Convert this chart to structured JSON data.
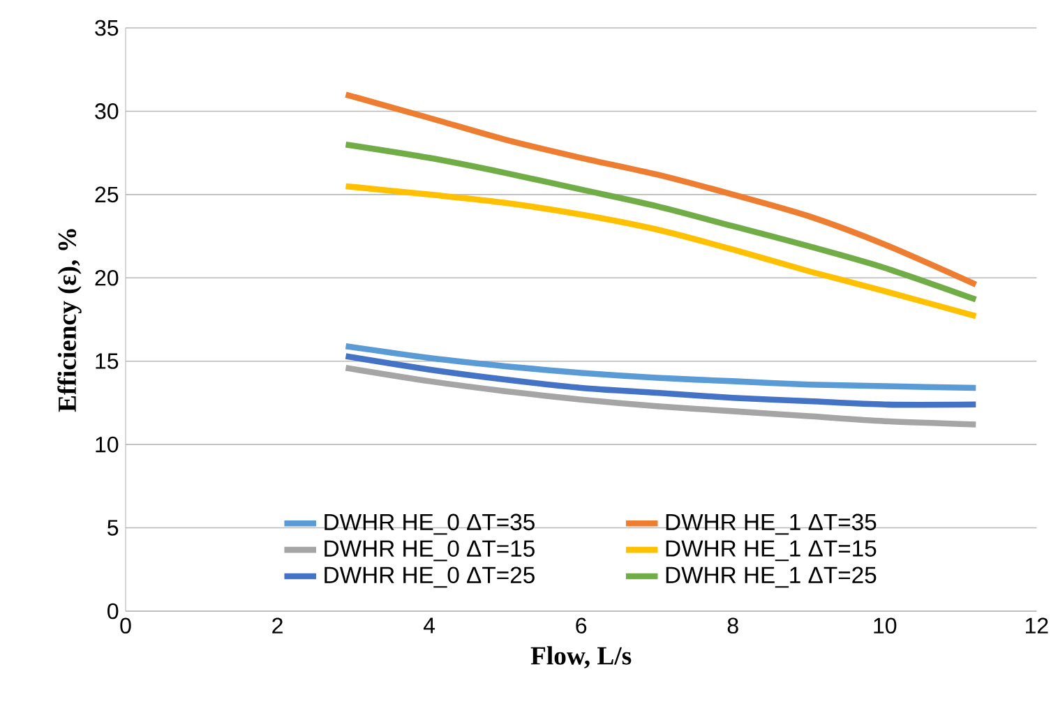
{
  "chart_data": {
    "type": "line",
    "xlabel": "Flow, L/s",
    "ylabel": "Efficiency (ε), %",
    "xlim": [
      0,
      12
    ],
    "ylim": [
      0,
      35
    ],
    "xticks": [
      0,
      2,
      4,
      6,
      8,
      10,
      12
    ],
    "yticks": [
      0,
      5,
      10,
      15,
      20,
      25,
      30,
      35
    ],
    "grid": "y",
    "legend": "bottom",
    "marker": "none",
    "line_style": "solid",
    "x": [
      2.9,
      4,
      5,
      6,
      7,
      8,
      9,
      10,
      11.2
    ],
    "series": [
      {
        "name": "DWHR HE_0 ΔT=35",
        "color": "#5b9bd5",
        "values": [
          15.9,
          15.2,
          14.7,
          14.3,
          14.0,
          13.8,
          13.6,
          13.5,
          13.4
        ]
      },
      {
        "name": "DWHR HE_1 ΔT=35",
        "color": "#ed7d31",
        "values": [
          31.0,
          29.6,
          28.3,
          27.2,
          26.2,
          25.0,
          23.7,
          22.0,
          19.6
        ]
      },
      {
        "name": "DWHR HE_0 ΔT=15",
        "color": "#a5a5a5",
        "values": [
          14.6,
          13.8,
          13.2,
          12.7,
          12.3,
          12.0,
          11.7,
          11.4,
          11.2
        ]
      },
      {
        "name": "DWHR HE_1 ΔT=15",
        "color": "#ffc000",
        "values": [
          25.5,
          25.0,
          24.5,
          23.8,
          22.9,
          21.7,
          20.4,
          19.2,
          17.7
        ]
      },
      {
        "name": "DWHR HE_0 ΔT=25",
        "color": "#4472c4",
        "values": [
          15.3,
          14.5,
          13.9,
          13.4,
          13.1,
          12.8,
          12.6,
          12.4,
          12.4
        ]
      },
      {
        "name": "DWHR HE_1 ΔT=25",
        "color": "#70ad47",
        "values": [
          28.0,
          27.2,
          26.3,
          25.3,
          24.3,
          23.1,
          21.9,
          20.6,
          18.7
        ]
      }
    ]
  }
}
